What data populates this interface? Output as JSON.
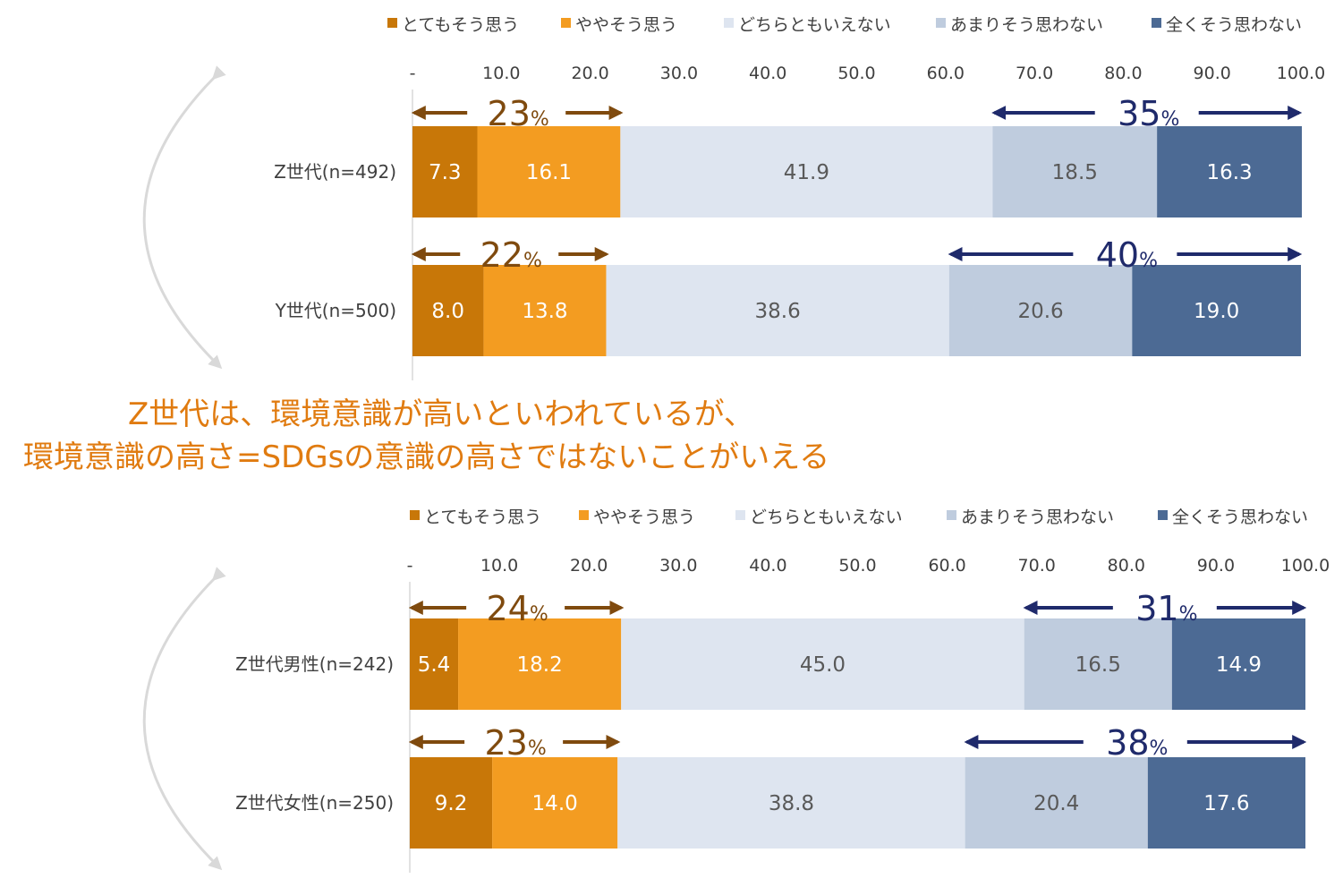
{
  "colors": {
    "strongly_agree": "#C87708",
    "somewhat_agree": "#F39C21",
    "neutral": "#DEE5F0",
    "somewhat_disagree": "#BFCCDE",
    "strongly_disagree": "#4C6A94",
    "agree_arrow": "#7F4A0E",
    "disagree_arrow": "#1F2A6B",
    "callout": "#E07B10"
  },
  "callout": {
    "line1": "Z世代は、環境意識が高いといわれているが、",
    "line2": "環境意識の高さ=SDGsの意識の高さではないことがいえる"
  },
  "chart_data": [
    {
      "type": "bar",
      "stacked": true,
      "orientation": "horizontal",
      "xlim": [
        0,
        100
      ],
      "x_ticks": [
        "-",
        "10.0",
        "20.0",
        "30.0",
        "40.0",
        "50.0",
        "60.0",
        "70.0",
        "80.0",
        "90.0",
        "100.0"
      ],
      "legend_position": "top",
      "categories": [
        "Z世代(n=492)",
        "Y世代(n=500)"
      ],
      "series": [
        {
          "name": "とてもそう思う",
          "color_key": "strongly_agree",
          "values": [
            7.3,
            8.0
          ]
        },
        {
          "name": "ややそう思う",
          "color_key": "somewhat_agree",
          "values": [
            16.1,
            13.8
          ]
        },
        {
          "name": "どちらともいえない",
          "color_key": "neutral",
          "values": [
            41.9,
            38.6
          ]
        },
        {
          "name": "あまりそう思わない",
          "color_key": "somewhat_disagree",
          "values": [
            18.5,
            20.6
          ]
        },
        {
          "name": "全くそう思わない",
          "color_key": "strongly_disagree",
          "values": [
            16.3,
            19.0
          ]
        }
      ],
      "value_labels": [
        [
          "7.3",
          "16.1",
          "41.9",
          "18.5",
          "16.3"
        ],
        [
          "8.0",
          "13.8",
          "38.6",
          "20.6",
          "19.0"
        ]
      ],
      "agree_totals": [
        {
          "num": "23",
          "unit": "%"
        },
        {
          "num": "22",
          "unit": "%"
        }
      ],
      "disagree_totals": [
        {
          "num": "35",
          "unit": "%"
        },
        {
          "num": "40",
          "unit": "%"
        }
      ]
    },
    {
      "type": "bar",
      "stacked": true,
      "orientation": "horizontal",
      "xlim": [
        0,
        100
      ],
      "x_ticks": [
        "-",
        "10.0",
        "20.0",
        "30.0",
        "40.0",
        "50.0",
        "60.0",
        "70.0",
        "80.0",
        "90.0",
        "100.0"
      ],
      "legend_position": "top",
      "categories": [
        "Z世代男性(n=242)",
        "Z世代女性(n=250)"
      ],
      "series": [
        {
          "name": "とてもそう思う",
          "color_key": "strongly_agree",
          "values": [
            5.4,
            9.2
          ]
        },
        {
          "name": "ややそう思う",
          "color_key": "somewhat_agree",
          "values": [
            18.2,
            14.0
          ]
        },
        {
          "name": "どちらともいえない",
          "color_key": "neutral",
          "values": [
            45.0,
            38.8
          ]
        },
        {
          "name": "あまりそう思わない",
          "color_key": "somewhat_disagree",
          "values": [
            16.5,
            20.4
          ]
        },
        {
          "name": "全くそう思わない",
          "color_key": "strongly_disagree",
          "values": [
            14.9,
            17.6
          ]
        }
      ],
      "value_labels": [
        [
          "5.4",
          "18.2",
          "45.0",
          "16.5",
          "14.9"
        ],
        [
          "9.2",
          "14.0",
          "38.8",
          "20.4",
          "17.6"
        ]
      ],
      "agree_totals": [
        {
          "num": "24",
          "unit": "%"
        },
        {
          "num": "23",
          "unit": "%"
        }
      ],
      "disagree_totals": [
        {
          "num": "31",
          "unit": "%"
        },
        {
          "num": "38",
          "unit": "%"
        }
      ]
    }
  ]
}
